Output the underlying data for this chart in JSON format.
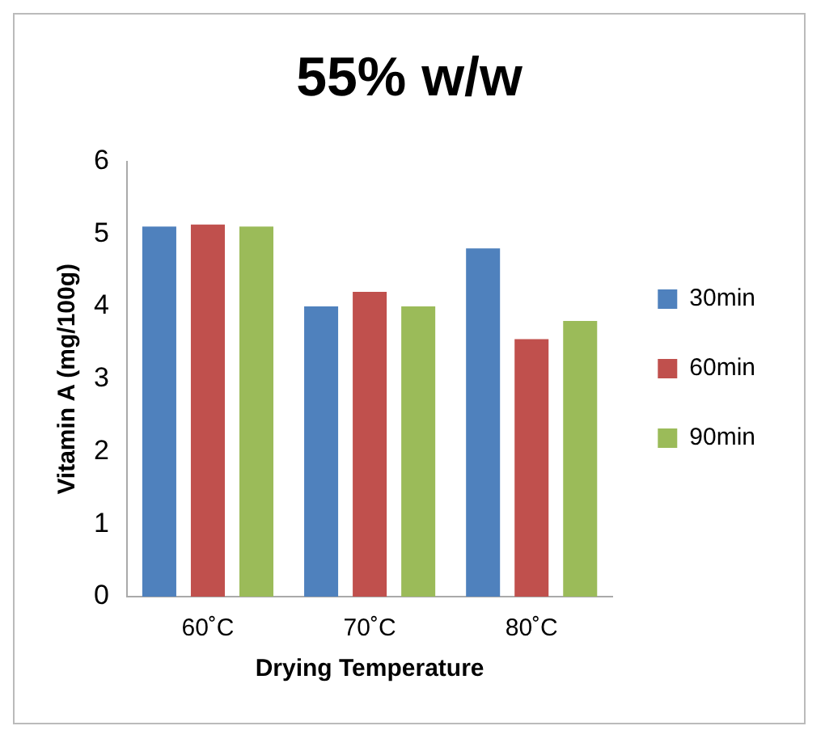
{
  "chart_data": {
    "type": "bar",
    "title": "55% w/w",
    "xlabel": "Drying Temperature",
    "ylabel": "Vitamin A (mg/100g)",
    "categories": [
      "60˚C",
      "70˚C",
      "80˚C"
    ],
    "series": [
      {
        "name": "30min",
        "color": "#4f81bd",
        "values": [
          5.1,
          4.0,
          4.8
        ]
      },
      {
        "name": "60min",
        "color": "#c0504d",
        "values": [
          5.13,
          4.2,
          3.55
        ]
      },
      {
        "name": "90min",
        "color": "#9bbb59",
        "values": [
          5.1,
          4.0,
          3.8
        ]
      }
    ],
    "ylim": [
      0,
      6
    ],
    "yticks": [
      0,
      1,
      2,
      3,
      4,
      5,
      6
    ],
    "grid": false,
    "legend": "right"
  }
}
